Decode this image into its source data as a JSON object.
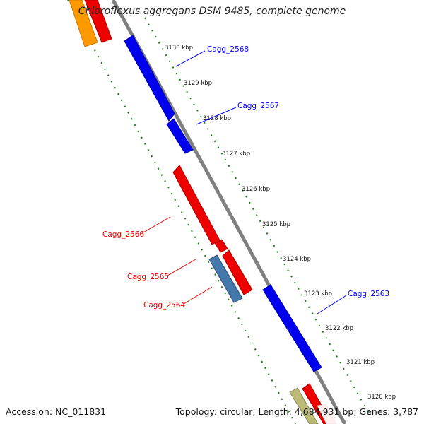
{
  "title": "Chloroflexus aggregans DSM 9485, complete genome",
  "footer": {
    "accession": "Accession: NC_011831",
    "summary": "Topology: circular; Length: 4,684,931 bp; Genes: 3,787"
  },
  "colors": {
    "forward": "#0000ee",
    "reverse": "#ee0000",
    "reverse_alt": "#4477aa",
    "backbone": "#808080",
    "ticks": "#1a7a1a",
    "orange": "#ff9900",
    "tan": "#bbbb77"
  },
  "scale": {
    "unit": "kbp",
    "ticks": [
      "3130 kbp",
      "3129 kbp",
      "3128 kbp",
      "3127 kbp",
      "3126 kbp",
      "3125 kbp",
      "3124 kbp",
      "3123 kbp",
      "3122 kbp",
      "3121 kbp",
      "3120 kbp"
    ]
  },
  "genes": [
    {
      "label": "Cagg_2568",
      "strand": "forward"
    },
    {
      "label": "Cagg_2567",
      "strand": "forward"
    },
    {
      "label": "Cagg_2566",
      "strand": "reverse"
    },
    {
      "label": "Cagg_2565",
      "strand": "reverse"
    },
    {
      "label": "Cagg_2564",
      "strand": "reverse"
    },
    {
      "label": "Cagg_2563",
      "strand": "forward"
    }
  ]
}
